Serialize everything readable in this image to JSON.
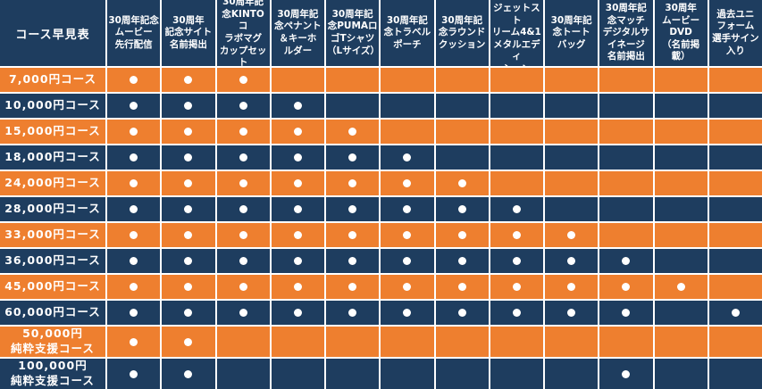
{
  "colors": {
    "row_navy": "#1E3D5F",
    "row_orange": "#EE7F2F",
    "gridline": "#FFFFFF",
    "dot": "#FFFFFF",
    "text": "#FFFFFF"
  },
  "chart_data": {
    "type": "table",
    "title": "コース早見表",
    "included_marker": "●",
    "columns": [
      "30周年記念\nムービー\n先行配信",
      "30周年\n記念サイト\n名前掲出",
      "30周年記\n念KINTOコ\nラボマグ\nカップセット",
      "30周年記\n念ペナント\n＆キーホ\nルダー",
      "30周年記\n念PUMAロ\nゴTシャツ\n（Lサイズ）",
      "30周年記\n念トラベル\nポーチ",
      "30周年記\n念ラウンド\nクッション",
      "30周年記念\nジェットスト\nリーム4&1\nメタルエディ\nション",
      "30周年記\n念トート\nバッグ",
      "30周年記\n念マッチ\nデジタルサ\nイネージ\n名前掲出",
      "30周年\nムービー\nDVD\n（名前掲\n載）",
      "過去ユニ\nフォーム\n選手サイン\n入り"
    ],
    "rows": [
      {
        "label": "7,000円コース",
        "style": "orange",
        "values": [
          1,
          1,
          1,
          0,
          0,
          0,
          0,
          0,
          0,
          0,
          0,
          0
        ]
      },
      {
        "label": "10,000円コース",
        "style": "navy",
        "values": [
          1,
          1,
          1,
          1,
          0,
          0,
          0,
          0,
          0,
          0,
          0,
          0
        ]
      },
      {
        "label": "15,000円コース",
        "style": "orange",
        "values": [
          1,
          1,
          1,
          1,
          1,
          0,
          0,
          0,
          0,
          0,
          0,
          0
        ]
      },
      {
        "label": "18,000円コース",
        "style": "navy",
        "values": [
          1,
          1,
          1,
          1,
          1,
          1,
          0,
          0,
          0,
          0,
          0,
          0
        ]
      },
      {
        "label": "24,000円コース",
        "style": "orange",
        "values": [
          1,
          1,
          1,
          1,
          1,
          1,
          1,
          0,
          0,
          0,
          0,
          0
        ]
      },
      {
        "label": "28,000円コース",
        "style": "navy",
        "values": [
          1,
          1,
          1,
          1,
          1,
          1,
          1,
          1,
          0,
          0,
          0,
          0
        ]
      },
      {
        "label": "33,000円コース",
        "style": "orange",
        "values": [
          1,
          1,
          1,
          1,
          1,
          1,
          1,
          1,
          1,
          0,
          0,
          0
        ]
      },
      {
        "label": "36,000円コース",
        "style": "navy",
        "values": [
          1,
          1,
          1,
          1,
          1,
          1,
          1,
          1,
          1,
          1,
          0,
          0
        ]
      },
      {
        "label": "45,000円コース",
        "style": "orange",
        "values": [
          1,
          1,
          1,
          1,
          1,
          1,
          1,
          1,
          1,
          1,
          1,
          0
        ]
      },
      {
        "label": "60,000円コース",
        "style": "navy",
        "values": [
          1,
          1,
          1,
          1,
          1,
          1,
          1,
          1,
          1,
          1,
          0,
          1
        ]
      },
      {
        "label": "50,000円\n純粋支援コース",
        "style": "orange",
        "values": [
          1,
          1,
          0,
          0,
          0,
          0,
          0,
          0,
          0,
          0,
          0,
          0
        ]
      },
      {
        "label": "100,000円\n純粋支援コース",
        "style": "navy",
        "values": [
          1,
          1,
          0,
          0,
          0,
          0,
          0,
          0,
          0,
          1,
          0,
          0
        ]
      }
    ]
  }
}
